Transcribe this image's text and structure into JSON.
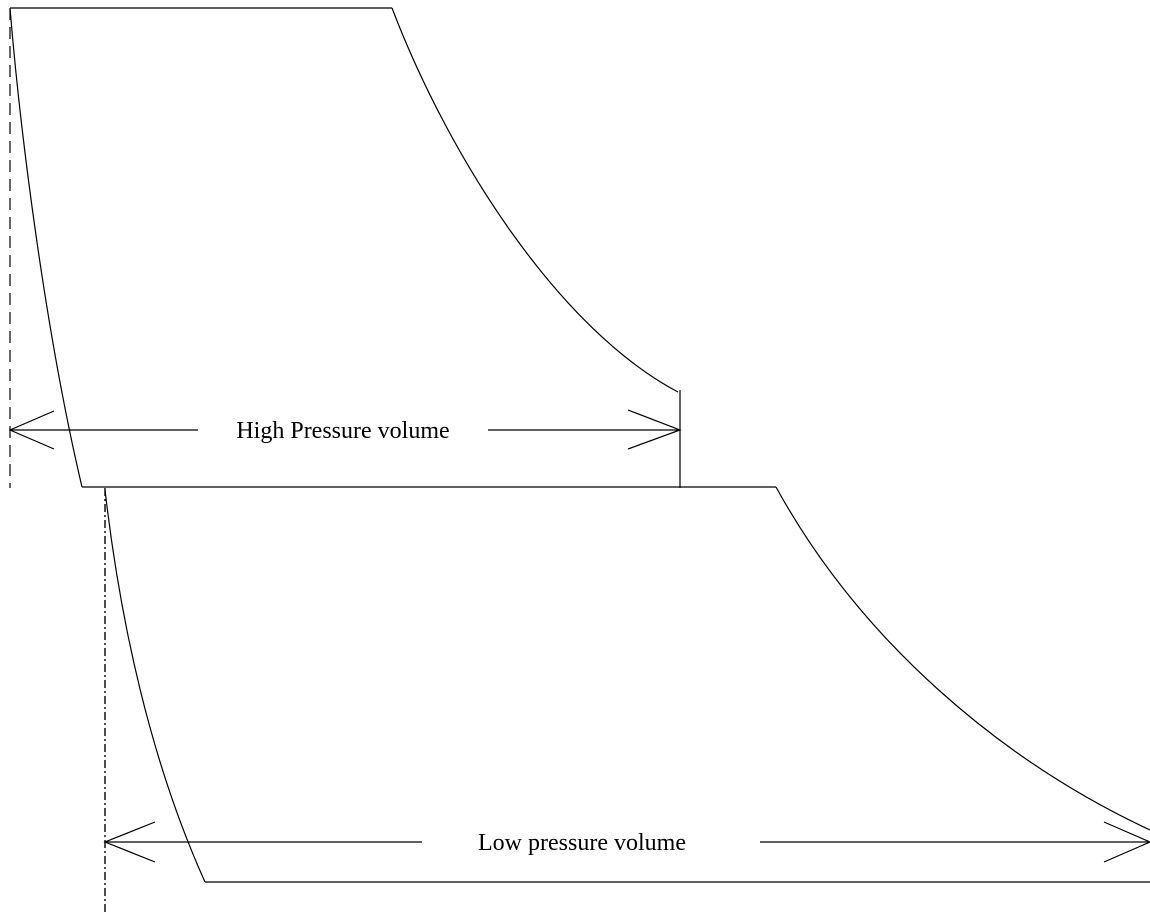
{
  "labels": {
    "high_pressure": "High Pressure volume",
    "low_pressure": "Low pressure volume"
  }
}
